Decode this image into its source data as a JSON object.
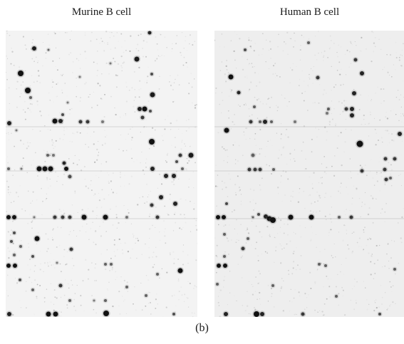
{
  "panels": {
    "left": {
      "label": "Murine B cell"
    },
    "right": {
      "label": "Human B cell"
    }
  },
  "caption": "(b)",
  "colors": {
    "spot": "#111111",
    "membrane_left": "#f3f3f3",
    "membrane_right": "#eeeeee"
  }
}
